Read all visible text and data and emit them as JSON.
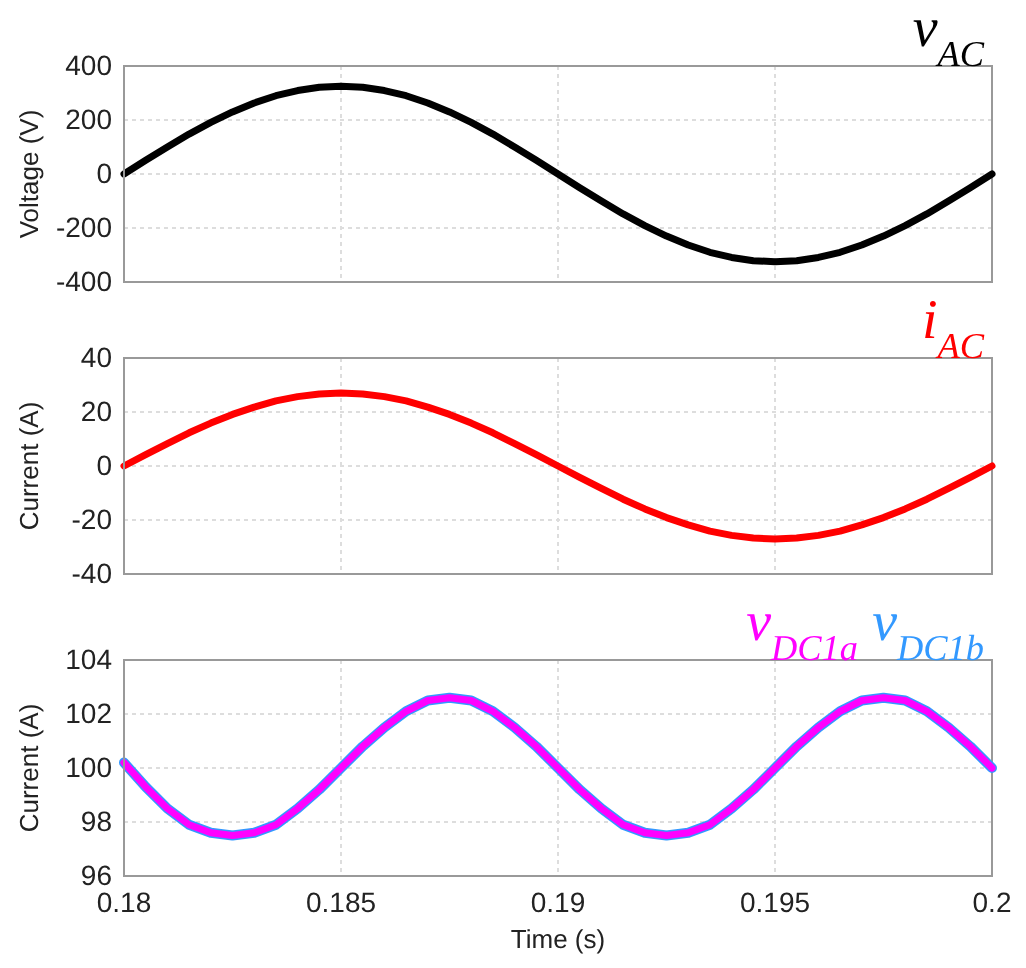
{
  "chart_data": [
    {
      "type": "line",
      "ylabel": "Voltage (V)",
      "x": [
        0.18,
        0.1805,
        0.181,
        0.1815,
        0.182,
        0.1825,
        0.183,
        0.1835,
        0.184,
        0.1845,
        0.185,
        0.1855,
        0.186,
        0.1865,
        0.187,
        0.1875,
        0.188,
        0.1885,
        0.189,
        0.1895,
        0.19,
        0.1905,
        0.191,
        0.1915,
        0.192,
        0.1925,
        0.193,
        0.1935,
        0.194,
        0.1945,
        0.195,
        0.1955,
        0.196,
        0.1965,
        0.197,
        0.1975,
        0.198,
        0.1985,
        0.199,
        0.1995,
        0.2
      ],
      "xlim": [
        0.18,
        0.2
      ],
      "xticks": [
        0.18,
        0.185,
        0.19,
        0.195,
        0.2
      ],
      "ylim": [
        -400,
        400
      ],
      "yticks": [
        -400,
        -200,
        0,
        200,
        400
      ],
      "grid": true,
      "tick_labels": "y",
      "legend": "top right",
      "line_style": "solid",
      "series": [
        {
          "name": "v$_{AC}$",
          "color": "#000000",
          "values": [
            0,
            51,
            100,
            148,
            191,
            230,
            263,
            290,
            309,
            321,
            325,
            321,
            309,
            290,
            263,
            230,
            191,
            148,
            100,
            51,
            0,
            -51,
            -100,
            -148,
            -191,
            -230,
            -263,
            -290,
            -309,
            -321,
            -325,
            -321,
            -309,
            -290,
            -263,
            -230,
            -191,
            -148,
            -100,
            -51,
            0
          ]
        }
      ]
    },
    {
      "type": "line",
      "ylabel": "Current (A)",
      "x": [
        0.18,
        0.1805,
        0.181,
        0.1815,
        0.182,
        0.1825,
        0.183,
        0.1835,
        0.184,
        0.1845,
        0.185,
        0.1855,
        0.186,
        0.1865,
        0.187,
        0.1875,
        0.188,
        0.1885,
        0.189,
        0.1895,
        0.19,
        0.1905,
        0.191,
        0.1915,
        0.192,
        0.1925,
        0.193,
        0.1935,
        0.194,
        0.1945,
        0.195,
        0.1955,
        0.196,
        0.1965,
        0.197,
        0.1975,
        0.198,
        0.1985,
        0.199,
        0.1995,
        0.2
      ],
      "xlim": [
        0.18,
        0.2
      ],
      "xticks": [
        0.18,
        0.185,
        0.19,
        0.195,
        0.2
      ],
      "ylim": [
        -40,
        40
      ],
      "yticks": [
        -40,
        -20,
        0,
        20,
        40
      ],
      "grid": true,
      "tick_labels": "y",
      "legend": "top right",
      "line_style": "solid",
      "series": [
        {
          "name": "i$_{AC}$",
          "color": "#ff0000",
          "values": [
            0,
            4.2,
            8.3,
            12.3,
            15.9,
            19.1,
            21.8,
            24.1,
            25.7,
            26.7,
            27,
            26.7,
            25.7,
            24.1,
            21.8,
            19.1,
            15.9,
            12.3,
            8.3,
            4.2,
            0,
            -4.2,
            -8.3,
            -12.3,
            -15.9,
            -19.1,
            -21.8,
            -24.1,
            -25.7,
            -26.7,
            -27,
            -26.7,
            -25.7,
            -24.1,
            -21.8,
            -19.1,
            -15.9,
            -12.3,
            -8.3,
            -4.2,
            0
          ]
        }
      ]
    },
    {
      "type": "line",
      "xlabel": "Time (s)",
      "ylabel": "Current (A)",
      "x": [
        0.18,
        0.1805,
        0.181,
        0.1815,
        0.182,
        0.1825,
        0.183,
        0.1835,
        0.184,
        0.1845,
        0.185,
        0.1855,
        0.186,
        0.1865,
        0.187,
        0.1875,
        0.188,
        0.1885,
        0.189,
        0.1895,
        0.19,
        0.1905,
        0.191,
        0.1915,
        0.192,
        0.1925,
        0.193,
        0.1935,
        0.194,
        0.1945,
        0.195,
        0.1955,
        0.196,
        0.1965,
        0.197,
        0.1975,
        0.198,
        0.1985,
        0.199,
        0.1995,
        0.2
      ],
      "xlim": [
        0.18,
        0.2
      ],
      "xticks": [
        0.18,
        0.185,
        0.19,
        0.195,
        0.2
      ],
      "ylim": [
        96,
        104
      ],
      "yticks": [
        96,
        98,
        100,
        102,
        104
      ],
      "grid": true,
      "legend": "top right",
      "line_style": "solid",
      "series": [
        {
          "name": "v$_{DC1b}$",
          "color": "#3399ff",
          "values": [
            100.2,
            99.3,
            98.5,
            97.9,
            97.6,
            97.5,
            97.6,
            97.9,
            98.5,
            99.2,
            100,
            100.8,
            101.5,
            102.1,
            102.5,
            102.6,
            102.5,
            102.1,
            101.5,
            100.8,
            100,
            99.2,
            98.5,
            97.9,
            97.6,
            97.5,
            97.6,
            97.9,
            98.5,
            99.2,
            100,
            100.8,
            101.5,
            102.1,
            102.5,
            102.6,
            102.5,
            102.1,
            101.5,
            100.8,
            100
          ]
        },
        {
          "name": "v$_{DC1a}$",
          "color": "#ff00ff",
          "values": [
            100.2,
            99.3,
            98.5,
            97.9,
            97.6,
            97.5,
            97.6,
            97.9,
            98.5,
            99.2,
            100,
            100.8,
            101.5,
            102.1,
            102.5,
            102.6,
            102.5,
            102.1,
            101.5,
            100.8,
            100,
            99.2,
            98.5,
            97.9,
            97.6,
            97.5,
            97.6,
            97.9,
            98.5,
            99.2,
            100,
            100.8,
            101.5,
            102.1,
            102.5,
            102.6,
            102.5,
            102.1,
            101.5,
            100.8,
            100
          ]
        }
      ]
    }
  ]
}
